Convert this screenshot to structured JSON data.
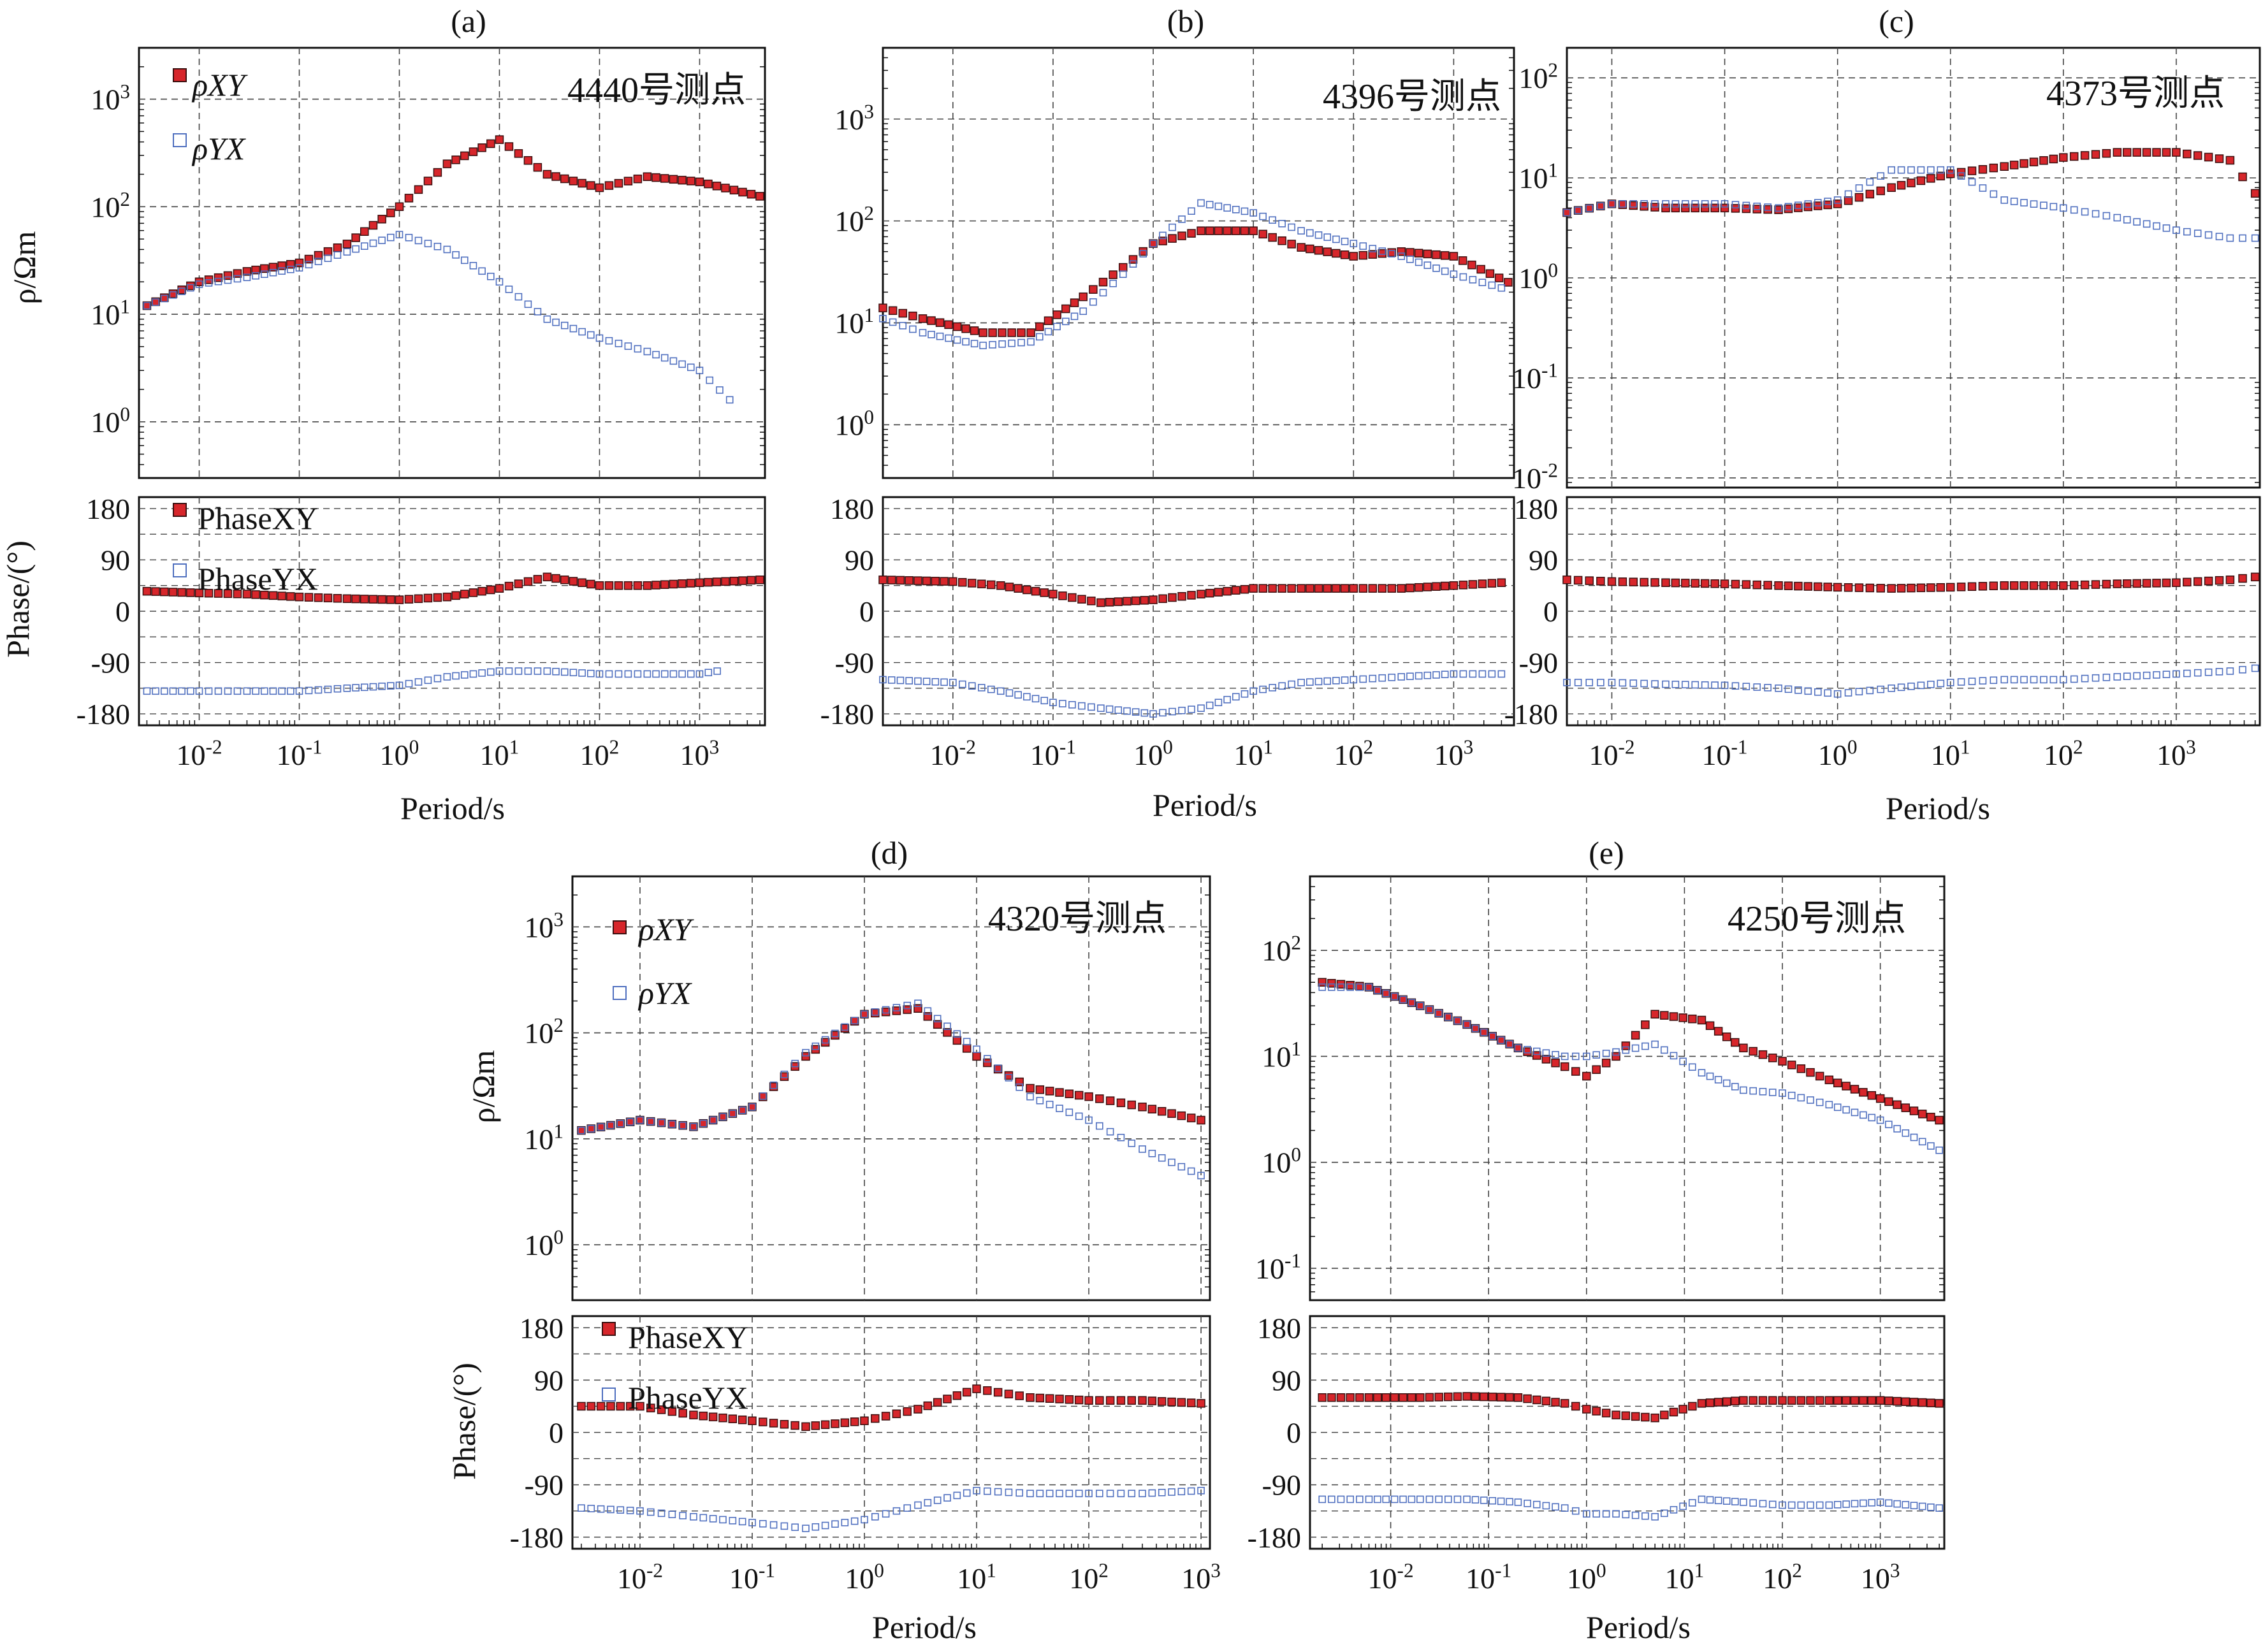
{
  "figure": {
    "common": {
      "rho_ylabel": "ρ/Ωm",
      "phase_ylabel": "Phase/(°)",
      "xlabel": "Period/s",
      "legend_rho": [
        "ρXY",
        "ρYX"
      ],
      "legend_phase": [
        "PhaseXY",
        "PhaseYX"
      ],
      "phase_ticks": [
        "180",
        "90",
        "0",
        "-90",
        "-180"
      ]
    },
    "colors": {
      "xy_fill": "#d7262b",
      "xy_edge": "#3a1010",
      "yx_edge": "#4f6fbf",
      "grid": "#444444"
    }
  },
  "chart_data": [
    {
      "type": "scatter",
      "panel": "(a)",
      "station": "4440号测点",
      "xscale": "log",
      "xlim": [
        0.0025,
        4500
      ],
      "x_ticks": [
        "10-2",
        "10-1",
        "100",
        "101",
        "102",
        "103"
      ],
      "rho_yscale": "log",
      "rho_ylim": [
        0.3,
        3000
      ],
      "rho_ticks": [
        "103",
        "102",
        "101",
        "100"
      ],
      "phase_ylim": [
        -200,
        200
      ],
      "show_legend": true,
      "series": [
        {
          "name": "ρXY",
          "x": [
            0.003,
            0.01,
            0.03,
            0.1,
            0.3,
            1,
            3,
            10,
            30,
            100,
            300,
            1000,
            4000
          ],
          "y": [
            12,
            20,
            25,
            30,
            45,
            100,
            250,
            420,
            200,
            150,
            190,
            170,
            125
          ]
        },
        {
          "name": "ρYX",
          "x": [
            0.003,
            0.01,
            0.03,
            0.1,
            0.3,
            1,
            3,
            10,
            30,
            100,
            300,
            1000,
            2000
          ],
          "y": [
            12,
            19,
            22,
            27,
            38,
            55,
            40,
            20,
            9,
            6,
            4.5,
            3,
            1.6
          ]
        },
        {
          "name": "PhaseXY",
          "x": [
            0.003,
            0.01,
            0.03,
            0.1,
            0.3,
            1,
            3,
            10,
            30,
            100,
            300,
            1000,
            4000
          ],
          "y": [
            35,
            32,
            30,
            25,
            22,
            20,
            25,
            40,
            60,
            45,
            45,
            50,
            55
          ]
        },
        {
          "name": "PhaseYX",
          "x": [
            0.003,
            0.01,
            0.03,
            0.1,
            0.3,
            1,
            3,
            10,
            30,
            100,
            300,
            1000,
            1500
          ],
          "y": [
            -140,
            -140,
            -140,
            -140,
            -135,
            -130,
            -115,
            -105,
            -105,
            -110,
            -110,
            -110,
            -105
          ]
        }
      ]
    },
    {
      "type": "scatter",
      "panel": "(b)",
      "station": "4396号测点",
      "xscale": "log",
      "xlim": [
        0.002,
        4000
      ],
      "x_ticks": [
        "10-2",
        "10-1",
        "100",
        "101",
        "102",
        "103"
      ],
      "rho_yscale": "log",
      "rho_ylim": [
        0.3,
        5000
      ],
      "rho_ticks": [
        "103",
        "102",
        "101",
        "100"
      ],
      "phase_ylim": [
        -200,
        200
      ],
      "show_legend": false,
      "series": [
        {
          "name": "ρXY",
          "x": [
            0.002,
            0.005,
            0.02,
            0.06,
            0.2,
            0.5,
            1,
            3,
            10,
            30,
            100,
            300,
            1000,
            3500
          ],
          "y": [
            14,
            11,
            8,
            8,
            18,
            35,
            60,
            80,
            80,
            55,
            45,
            50,
            45,
            25
          ]
        },
        {
          "name": "ρYX",
          "x": [
            0.002,
            0.005,
            0.02,
            0.06,
            0.2,
            0.5,
            1,
            3,
            10,
            30,
            100,
            300,
            1000,
            3000
          ],
          "y": [
            11,
            8,
            6,
            6.5,
            13,
            30,
            60,
            150,
            120,
            80,
            60,
            45,
            30,
            22
          ]
        },
        {
          "name": "PhaseXY",
          "x": [
            0.002,
            0.01,
            0.03,
            0.1,
            0.3,
            1,
            3,
            10,
            30,
            100,
            300,
            1000,
            3000
          ],
          "y": [
            55,
            52,
            45,
            30,
            15,
            20,
            30,
            40,
            40,
            40,
            40,
            45,
            50
          ]
        },
        {
          "name": "PhaseYX",
          "x": [
            0.002,
            0.01,
            0.03,
            0.1,
            0.3,
            1,
            3,
            10,
            30,
            100,
            300,
            1000,
            3000
          ],
          "y": [
            -120,
            -125,
            -140,
            -160,
            -170,
            -180,
            -170,
            -140,
            -125,
            -120,
            -115,
            -110,
            -110
          ]
        }
      ]
    },
    {
      "type": "scatter",
      "panel": "(c)",
      "station": "4373号测点",
      "xscale": "log",
      "xlim": [
        0.004,
        5500
      ],
      "x_ticks": [
        "10-2",
        "10-1",
        "100",
        "101",
        "102",
        "103"
      ],
      "rho_yscale": "log",
      "rho_ylim": [
        0.008,
        200
      ],
      "rho_ticks": [
        "102",
        "101",
        "100",
        "10-1",
        "10-2"
      ],
      "phase_ylim": [
        -200,
        200
      ],
      "show_legend": false,
      "series": [
        {
          "name": "ρXY",
          "x": [
            0.004,
            0.01,
            0.03,
            0.1,
            0.3,
            1,
            3,
            10,
            30,
            100,
            300,
            1000,
            3000,
            5000
          ],
          "y": [
            4.5,
            5.5,
            5,
            5,
            4.8,
            5.5,
            8,
            11,
            13,
            16,
            18,
            18,
            15,
            7
          ]
        },
        {
          "name": "ρYX",
          "x": [
            0.004,
            0.01,
            0.03,
            0.1,
            0.3,
            1,
            3,
            10,
            30,
            100,
            300,
            1000,
            3000,
            5000
          ],
          "y": [
            4.5,
            5.5,
            5.5,
            5.5,
            5,
            6,
            12,
            12,
            6,
            5,
            4,
            3,
            2.5,
            2.5
          ]
        },
        {
          "name": "PhaseXY",
          "x": [
            0.004,
            0.01,
            0.03,
            0.1,
            0.3,
            1,
            3,
            10,
            30,
            100,
            300,
            1000,
            3000,
            5000
          ],
          "y": [
            55,
            52,
            50,
            48,
            45,
            42,
            40,
            42,
            45,
            45,
            48,
            50,
            55,
            60
          ]
        },
        {
          "name": "PhaseYX",
          "x": [
            0.004,
            0.01,
            0.03,
            0.1,
            0.3,
            1,
            3,
            10,
            30,
            100,
            300,
            1000,
            3000,
            5000
          ],
          "y": [
            -125,
            -125,
            -128,
            -130,
            -135,
            -145,
            -135,
            -125,
            -120,
            -120,
            -115,
            -110,
            -105,
            -100
          ]
        }
      ]
    },
    {
      "type": "scatter",
      "panel": "(d)",
      "station": "4320号测点",
      "xscale": "log",
      "xlim": [
        0.0025,
        1200
      ],
      "x_ticks": [
        "10-2",
        "10-1",
        "100",
        "101",
        "102",
        "103"
      ],
      "rho_yscale": "log",
      "rho_ylim": [
        0.3,
        3000
      ],
      "rho_ticks": [
        "103",
        "102",
        "101",
        "100"
      ],
      "phase_ylim": [
        -200,
        200
      ],
      "show_legend": true,
      "series": [
        {
          "name": "ρXY",
          "x": [
            0.003,
            0.01,
            0.03,
            0.1,
            0.3,
            1,
            3,
            10,
            30,
            100,
            300,
            1000
          ],
          "y": [
            12,
            15,
            13,
            20,
            60,
            150,
            170,
            60,
            30,
            25,
            20,
            15
          ]
        },
        {
          "name": "ρYX",
          "x": [
            0.003,
            0.01,
            0.03,
            0.1,
            0.3,
            1,
            3,
            10,
            30,
            100,
            300,
            1000
          ],
          "y": [
            12,
            15,
            13,
            20,
            65,
            150,
            190,
            70,
            25,
            15,
            8,
            4.5
          ]
        },
        {
          "name": "PhaseXY",
          "x": [
            0.003,
            0.01,
            0.03,
            0.1,
            0.3,
            1,
            3,
            10,
            30,
            100,
            300,
            1000
          ],
          "y": [
            45,
            45,
            30,
            20,
            10,
            20,
            40,
            75,
            60,
            55,
            55,
            50
          ]
        },
        {
          "name": "PhaseYX",
          "x": [
            0.003,
            0.01,
            0.03,
            0.1,
            0.3,
            1,
            3,
            10,
            30,
            100,
            300,
            1000
          ],
          "y": [
            -130,
            -135,
            -145,
            -155,
            -165,
            -150,
            -125,
            -100,
            -105,
            -105,
            -105,
            -100
          ]
        }
      ]
    },
    {
      "type": "scatter",
      "panel": "(e)",
      "station": "4250号测点",
      "xscale": "log",
      "xlim": [
        0.0015,
        4500
      ],
      "x_ticks": [
        "10-2",
        "10-1",
        "100",
        "101",
        "102",
        "103"
      ],
      "rho_yscale": "log",
      "rho_ylim": [
        0.05,
        500
      ],
      "rho_ticks": [
        "102",
        "101",
        "100",
        "10-1"
      ],
      "phase_ylim": [
        -200,
        200
      ],
      "show_legend": false,
      "series": [
        {
          "name": "ρXY",
          "x": [
            0.002,
            0.006,
            0.02,
            0.06,
            0.2,
            0.6,
            1,
            2,
            5,
            15,
            40,
            100,
            300,
            1000,
            4000
          ],
          "y": [
            50,
            45,
            30,
            20,
            12,
            8,
            6.5,
            10,
            25,
            22,
            12,
            9,
            6,
            4,
            2.5
          ]
        },
        {
          "name": "ρYX",
          "x": [
            0.002,
            0.006,
            0.02,
            0.06,
            0.2,
            0.6,
            1,
            2,
            5,
            15,
            40,
            100,
            300,
            1000,
            4000
          ],
          "y": [
            45,
            45,
            30,
            20,
            12,
            10,
            10,
            11,
            13,
            7,
            4.8,
            4.5,
            3.5,
            2.5,
            1.3
          ]
        },
        {
          "name": "PhaseXY",
          "x": [
            0.002,
            0.006,
            0.02,
            0.06,
            0.2,
            0.6,
            1,
            2,
            5,
            15,
            40,
            100,
            300,
            1000,
            4000
          ],
          "y": [
            60,
            60,
            60,
            62,
            60,
            50,
            40,
            30,
            25,
            50,
            55,
            55,
            55,
            55,
            50
          ]
        },
        {
          "name": "PhaseYX",
          "x": [
            0.002,
            0.006,
            0.02,
            0.06,
            0.2,
            0.6,
            1,
            2,
            5,
            15,
            40,
            100,
            300,
            1000,
            4000
          ],
          "y": [
            -115,
            -115,
            -115,
            -115,
            -120,
            -130,
            -140,
            -140,
            -145,
            -115,
            -120,
            -125,
            -125,
            -120,
            -130
          ]
        }
      ]
    }
  ]
}
